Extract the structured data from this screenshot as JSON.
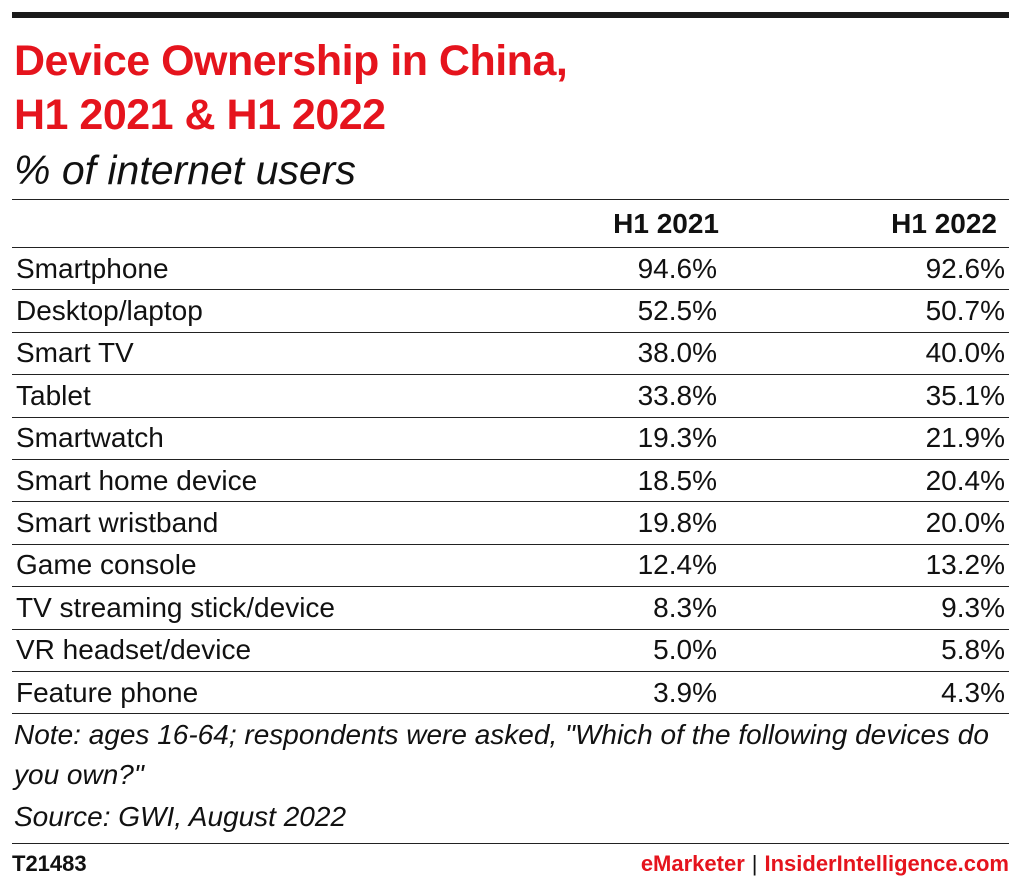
{
  "title_line1": "Device Ownership in China,",
  "title_line2": "H1 2021 & H1 2022",
  "subtitle": "% of internet users",
  "colors": {
    "title": "#e5141d",
    "text": "#111111",
    "rule": "#222222",
    "brand": "#e5141d"
  },
  "chart_data": {
    "type": "table",
    "title": "Device Ownership in China, H1 2021 & H1 2022",
    "subtitle": "% of internet users",
    "columns": [
      "H1 2021",
      "H1 2022"
    ],
    "categories": [
      "Smartphone",
      "Desktop/laptop",
      "Smart TV",
      "Tablet",
      "Smartwatch",
      "Smart home device",
      "Smart wristband",
      "Game console",
      "TV streaming stick/device",
      "VR headset/device",
      "Feature phone"
    ],
    "series": [
      {
        "name": "H1 2021",
        "values": [
          94.6,
          52.5,
          38.0,
          33.8,
          19.3,
          18.5,
          19.8,
          12.4,
          8.3,
          5.0,
          3.9
        ]
      },
      {
        "name": "H1 2022",
        "values": [
          92.6,
          50.7,
          40.0,
          35.1,
          21.9,
          20.4,
          20.0,
          13.2,
          9.3,
          5.8,
          4.3
        ]
      }
    ],
    "rows": [
      {
        "label": "Smartphone",
        "h1_2021": "94.6%",
        "h1_2022": "92.6%"
      },
      {
        "label": "Desktop/laptop",
        "h1_2021": "52.5%",
        "h1_2022": "50.7%"
      },
      {
        "label": "Smart TV",
        "h1_2021": "38.0%",
        "h1_2022": "40.0%"
      },
      {
        "label": "Tablet",
        "h1_2021": "33.8%",
        "h1_2022": "35.1%"
      },
      {
        "label": "Smartwatch",
        "h1_2021": "19.3%",
        "h1_2022": "21.9%"
      },
      {
        "label": "Smart home device",
        "h1_2021": "18.5%",
        "h1_2022": "20.4%"
      },
      {
        "label": "Smart wristband",
        "h1_2021": "19.8%",
        "h1_2022": "20.0%"
      },
      {
        "label": "Game console",
        "h1_2021": "12.4%",
        "h1_2022": "13.2%"
      },
      {
        "label": "TV streaming stick/device",
        "h1_2021": "8.3%",
        "h1_2022": "9.3%"
      },
      {
        "label": "VR headset/device",
        "h1_2021": "5.0%",
        "h1_2022": "5.8%"
      },
      {
        "label": "Feature phone",
        "h1_2021": "3.9%",
        "h1_2022": "4.3%"
      }
    ]
  },
  "note": "Note: ages 16-64; respondents were asked, \"Which of the following devices do you own?\"",
  "source": "Source: GWI, August 2022",
  "footer": {
    "id": "T21483",
    "brand_left": "eMarketer",
    "separator": "|",
    "brand_right": "InsiderIntelligence.com"
  }
}
